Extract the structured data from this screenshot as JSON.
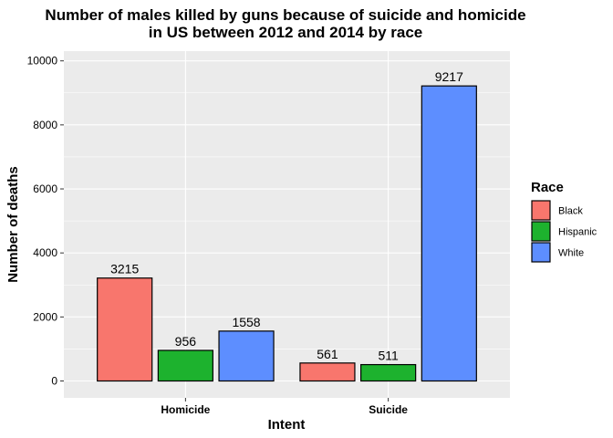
{
  "chart_data": {
    "type": "bar",
    "title_lines": [
      "Number of males killed by guns because of suicide and homicide",
      "in US between 2012 and 2014 by race"
    ],
    "xlabel": "Intent",
    "ylabel": "Number of deaths",
    "categories": [
      "Homicide",
      "Suicide"
    ],
    "series": [
      {
        "name": "Black",
        "color": "#F8766D",
        "values": [
          3215,
          561
        ]
      },
      {
        "name": "Hispanic",
        "color": "#1DB22E",
        "values": [
          956,
          511
        ]
      },
      {
        "name": "White",
        "color": "#5D8EFF",
        "values": [
          1558,
          9217
        ]
      }
    ],
    "ylim": [
      0,
      10400
    ],
    "yticks": [
      0,
      2000,
      4000,
      6000,
      8000,
      10000
    ],
    "grid": true,
    "panel_background": "#EBEBEB",
    "legend_title": "Race",
    "legend_position": "right"
  }
}
